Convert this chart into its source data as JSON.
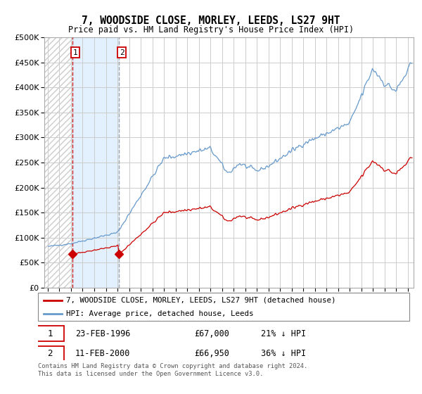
{
  "title": "7, WOODSIDE CLOSE, MORLEY, LEEDS, LS27 9HT",
  "subtitle": "Price paid vs. HM Land Registry's House Price Index (HPI)",
  "legend_line1": "7, WOODSIDE CLOSE, MORLEY, LEEDS, LS27 9HT (detached house)",
  "legend_line2": "HPI: Average price, detached house, Leeds",
  "footer": "Contains HM Land Registry data © Crown copyright and database right 2024.\nThis data is licensed under the Open Government Licence v3.0.",
  "purchase1_year": 1996.12,
  "purchase1_price": 67000,
  "purchase1_label": "23-FEB-1996",
  "purchase1_amount": "£67,000",
  "purchase1_hpi_text": "21% ↓ HPI",
  "purchase2_year": 2000.12,
  "purchase2_price": 66950,
  "purchase2_label": "11-FEB-2000",
  "purchase2_amount": "£66,950",
  "purchase2_hpi_text": "36% ↓ HPI",
  "hpi_color": "#6699cc",
  "price_color": "#cc0000",
  "vline1_color": "#cc0000",
  "vline2_color": "#999999",
  "shade_color": "#ddeeff",
  "ylim": [
    0,
    500000
  ],
  "yticks": [
    0,
    50000,
    100000,
    150000,
    200000,
    250000,
    300000,
    350000,
    400000,
    450000,
    500000
  ],
  "xstart": 1993.7,
  "xend": 2025.5,
  "hpi_at_p1": 85000,
  "hpi_at_p2": 104500
}
